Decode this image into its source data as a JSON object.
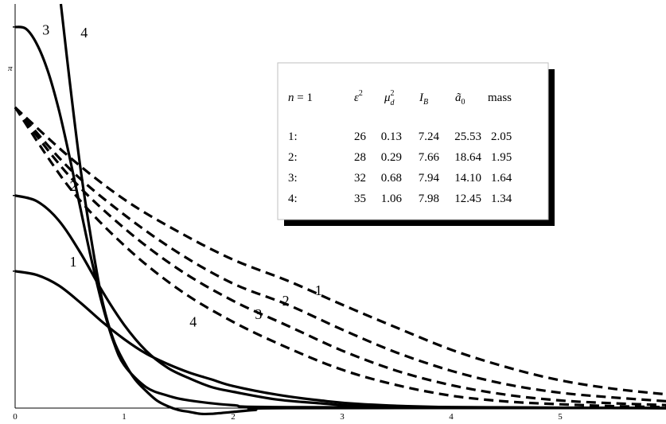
{
  "chart_data": {
    "type": "line",
    "xlim": [
      0,
      6
    ],
    "ylim": [
      0,
      4.22
    ],
    "x_ticks": [
      "0",
      "1",
      "2",
      "3",
      "4",
      "5"
    ],
    "y_special_tick": "π",
    "grid": false,
    "legend_position": "top-right",
    "table": {
      "headers": [
        "n = 1",
        "ε²",
        "μ_d²",
        "I_B",
        "ã₀",
        "mass"
      ],
      "rows": [
        [
          "1:",
          "26",
          "0.13",
          "7.24",
          "25.53",
          "2.05"
        ],
        [
          "2:",
          "28",
          "0.29",
          "7.66",
          "18.64",
          "1.95"
        ],
        [
          "3:",
          "32",
          "0.68",
          "7.94",
          "14.10",
          "1.64"
        ],
        [
          "4:",
          "35",
          "1.06",
          "7.98",
          "12.45",
          "1.34"
        ]
      ]
    },
    "solid_series": [
      {
        "label": "1",
        "points": [
          [
            0,
            1.43
          ],
          [
            0.2,
            1.39
          ],
          [
            0.4,
            1.28
          ],
          [
            0.6,
            1.1
          ],
          [
            0.8,
            0.9
          ],
          [
            1.0,
            0.72
          ],
          [
            1.2,
            0.57
          ],
          [
            1.4,
            0.46
          ],
          [
            1.6,
            0.37
          ],
          [
            1.8,
            0.3
          ],
          [
            2.0,
            0.23
          ],
          [
            2.4,
            0.14
          ],
          [
            2.8,
            0.08
          ],
          [
            3.2,
            0.04
          ],
          [
            4.0,
            0.01
          ],
          [
            6.0,
            0.0
          ]
        ]
      },
      {
        "label": "2",
        "points": [
          [
            0,
            2.22
          ],
          [
            0.2,
            2.16
          ],
          [
            0.4,
            1.96
          ],
          [
            0.6,
            1.62
          ],
          [
            0.8,
            1.22
          ],
          [
            1.0,
            0.87
          ],
          [
            1.2,
            0.6
          ],
          [
            1.4,
            0.42
          ],
          [
            1.6,
            0.31
          ],
          [
            1.8,
            0.22
          ],
          [
            2.0,
            0.17
          ],
          [
            2.4,
            0.09
          ],
          [
            2.8,
            0.05
          ],
          [
            3.2,
            0.02
          ],
          [
            4.0,
            0.01
          ],
          [
            6.0,
            0.0
          ]
        ]
      },
      {
        "label": "3",
        "points": [
          [
            0,
            3.98
          ],
          [
            0.1,
            3.96
          ],
          [
            0.2,
            3.8
          ],
          [
            0.3,
            3.52
          ],
          [
            0.4,
            3.12
          ],
          [
            0.5,
            2.62
          ],
          [
            0.6,
            2.08
          ],
          [
            0.7,
            1.55
          ],
          [
            0.8,
            1.08
          ],
          [
            0.9,
            0.7
          ],
          [
            1.0,
            0.45
          ],
          [
            1.2,
            0.22
          ],
          [
            1.4,
            0.13
          ],
          [
            1.6,
            0.08
          ],
          [
            2.0,
            0.03
          ],
          [
            2.5,
            0.01
          ],
          [
            6.0,
            0.0
          ]
        ]
      },
      {
        "label": "4",
        "points": [
          [
            0.42,
            4.22
          ],
          [
            0.5,
            3.42
          ],
          [
            0.6,
            2.5
          ],
          [
            0.7,
            1.75
          ],
          [
            0.8,
            1.12
          ],
          [
            0.9,
            0.72
          ],
          [
            1.0,
            0.48
          ],
          [
            1.1,
            0.3
          ],
          [
            1.2,
            0.18
          ],
          [
            1.3,
            0.08
          ],
          [
            1.4,
            0.02
          ],
          [
            1.5,
            -0.02
          ],
          [
            1.6,
            -0.04
          ],
          [
            1.7,
            -0.06
          ],
          [
            1.8,
            -0.06
          ],
          [
            2.0,
            -0.04
          ],
          [
            2.2,
            -0.02
          ],
          [
            2.5,
            0.0
          ],
          [
            6.0,
            0.0
          ]
        ]
      }
    ],
    "dashed_series": [
      {
        "label": "1",
        "points": [
          [
            0,
            3.14
          ],
          [
            0.5,
            2.62
          ],
          [
            1.0,
            2.18
          ],
          [
            1.5,
            1.84
          ],
          [
            2.0,
            1.55
          ],
          [
            2.5,
            1.33
          ],
          [
            3.0,
            1.08
          ],
          [
            3.5,
            0.84
          ],
          [
            4.0,
            0.61
          ],
          [
            4.5,
            0.43
          ],
          [
            5.0,
            0.29
          ],
          [
            5.5,
            0.2
          ],
          [
            6.0,
            0.14
          ]
        ]
      },
      {
        "label": "2",
        "points": [
          [
            0,
            3.14
          ],
          [
            0.5,
            2.5
          ],
          [
            1.0,
            2.02
          ],
          [
            1.5,
            1.62
          ],
          [
            2.0,
            1.3
          ],
          [
            2.5,
            1.08
          ],
          [
            3.0,
            0.82
          ],
          [
            3.5,
            0.58
          ],
          [
            4.0,
            0.39
          ],
          [
            4.5,
            0.25
          ],
          [
            5.0,
            0.16
          ],
          [
            5.5,
            0.11
          ],
          [
            6.0,
            0.07
          ]
        ]
      },
      {
        "label": "3",
        "points": [
          [
            0,
            3.14
          ],
          [
            0.5,
            2.42
          ],
          [
            1.0,
            1.88
          ],
          [
            1.5,
            1.45
          ],
          [
            2.0,
            1.12
          ],
          [
            2.5,
            0.86
          ],
          [
            3.0,
            0.6
          ],
          [
            3.5,
            0.39
          ],
          [
            4.0,
            0.24
          ],
          [
            4.5,
            0.14
          ],
          [
            5.0,
            0.08
          ],
          [
            5.5,
            0.05
          ],
          [
            6.0,
            0.03
          ]
        ]
      },
      {
        "label": "4",
        "points": [
          [
            0,
            3.14
          ],
          [
            0.5,
            2.3
          ],
          [
            1.0,
            1.7
          ],
          [
            1.5,
            1.24
          ],
          [
            2.0,
            0.9
          ],
          [
            2.5,
            0.63
          ],
          [
            3.0,
            0.4
          ],
          [
            3.5,
            0.24
          ],
          [
            4.0,
            0.13
          ],
          [
            4.5,
            0.07
          ],
          [
            5.0,
            0.04
          ],
          [
            5.5,
            0.02
          ],
          [
            6.0,
            0.01
          ]
        ]
      }
    ],
    "solid_label_positions": [
      [
        0.5,
        1.43
      ],
      [
        0.5,
        2.22
      ],
      [
        0.25,
        3.85
      ],
      [
        0.6,
        3.82
      ]
    ],
    "dashed_label_positions": [
      [
        2.75,
        1.18
      ],
      [
        2.45,
        1.07
      ],
      [
        2.2,
        0.93
      ],
      [
        1.6,
        0.85
      ]
    ]
  }
}
